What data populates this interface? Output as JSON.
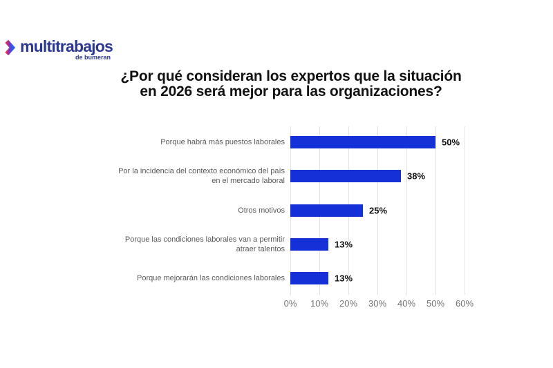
{
  "page": {
    "background": "#ffffff"
  },
  "logo": {
    "brand": "multitrabajos",
    "tagline": "de bumeran",
    "brand_color": "#2b3791",
    "chevron_gradient": [
      "#e72c5f",
      "#7334c8",
      "#2b5ce6"
    ]
  },
  "title": "¿Por qué consideran los expertos que la situación\nen 2026 será mejor para las organizaciones?",
  "chart_data": {
    "type": "bar",
    "orientation": "horizontal",
    "title": "¿Por qué consideran los expertos que la situación en 2026 será mejor para las organizaciones?",
    "categories": [
      "Porque habrá más puestos laborales",
      "Por la incidencia del contexto económico del país\nen el mercado laboral",
      "Otros motivos",
      "Porque las condiciones laborales van a permitir\natraer talentos",
      "Porque mejorarán las condiciones laborales"
    ],
    "values": [
      50,
      38,
      25,
      13,
      13
    ],
    "value_labels": [
      "50%",
      "38%",
      "25%",
      "13%",
      "13%"
    ],
    "xlabel": "",
    "ylabel": "",
    "xlim": [
      0,
      60
    ],
    "x_ticks": [
      "0%",
      "10%",
      "20%",
      "30%",
      "40%",
      "50%",
      "60%"
    ],
    "x_tick_values": [
      0,
      10,
      20,
      30,
      40,
      50,
      60
    ],
    "grid": "vertical",
    "legend": "none",
    "bar_color": "#1530d6",
    "category_label_color": "#595959",
    "tick_label_color": "#757575",
    "gridline_color": "#e3e3e3"
  }
}
